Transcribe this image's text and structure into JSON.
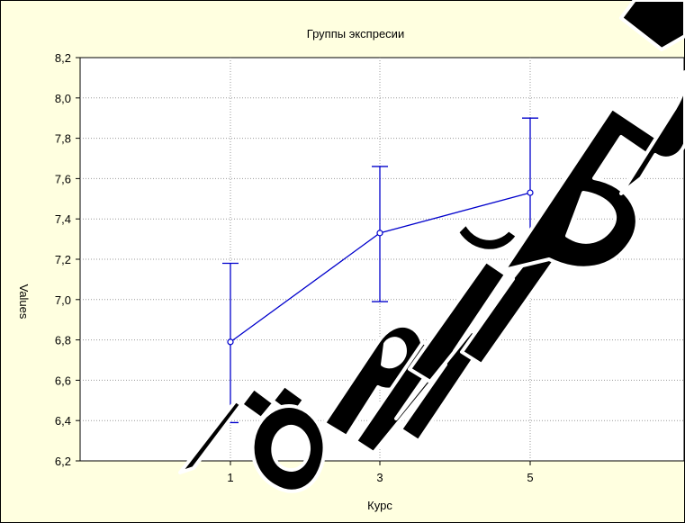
{
  "chart_data": {
    "type": "line",
    "title": "Группы экспресии",
    "xlabel": "Курс",
    "ylabel": "Values",
    "categories": [
      "1",
      "3",
      "5"
    ],
    "ylim": [
      6.2,
      8.2
    ],
    "yticks": [
      "6,2",
      "6,4",
      "6,6",
      "6,8",
      "7,0",
      "7,2",
      "7,4",
      "7,6",
      "7,8",
      "8,0",
      "8,2"
    ],
    "grid": true,
    "series": [
      {
        "values": [
          6.79,
          7.33,
          7.53
        ],
        "error_low": [
          6.39,
          6.99,
          7.16
        ],
        "error_high": [
          7.18,
          7.66,
          7.9
        ],
        "color": "#0000cc"
      }
    ]
  },
  "colors": {
    "background": "#ffffe0",
    "plot_area": "#ffffff",
    "series": "#0000cc",
    "grid": "#999999",
    "watermark": "#000000"
  },
  "watermark_text": "Торий Бр"
}
